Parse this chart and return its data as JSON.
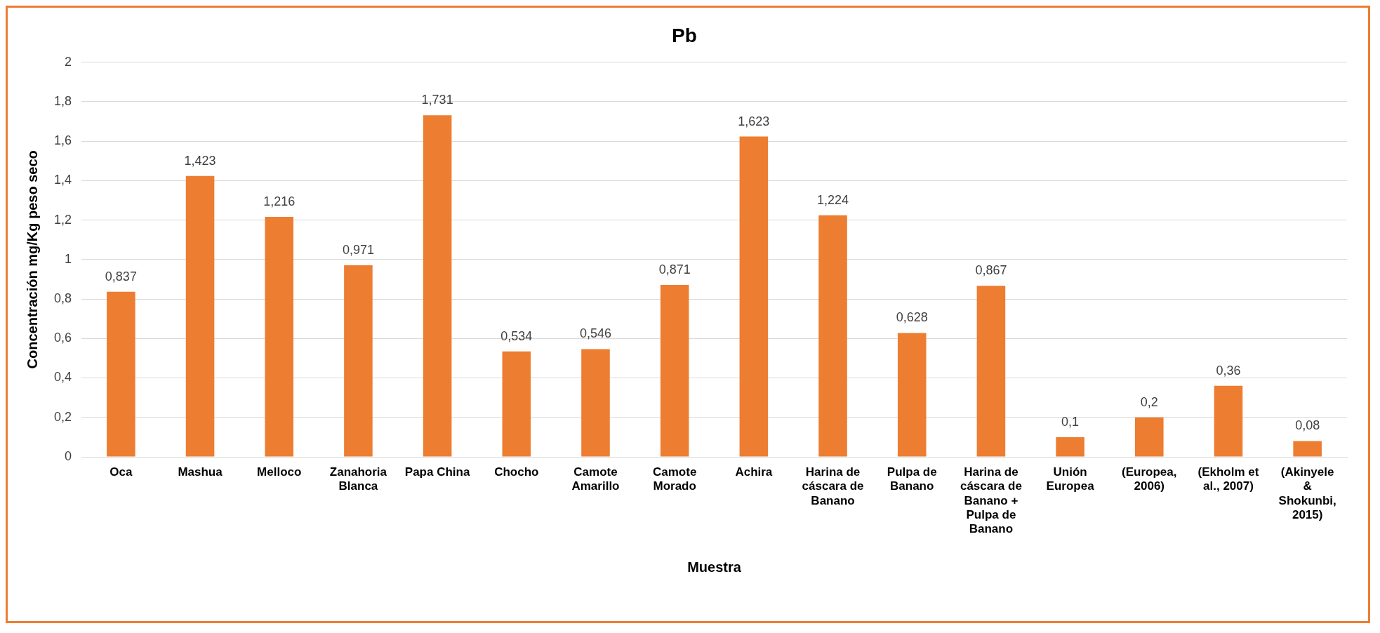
{
  "chart_data": {
    "type": "bar",
    "title": "Pb",
    "xlabel": "Muestra",
    "ylabel": "Concentración mg/Kg peso seco",
    "categories": [
      "Oca",
      "Mashua",
      "Melloco",
      "Zanahoria Blanca",
      "Papa China",
      "Chocho",
      "Camote Amarillo",
      "Camote Morado",
      "Achira",
      "Harina de cáscara de Banano",
      "Pulpa de Banano",
      "Harina de cáscara de Banano + Pulpa de Banano",
      "Unión Europea",
      "(Europea, 2006)",
      "(Ekholm et al., 2007)",
      "(Akinyele & Shokunbi, 2015)"
    ],
    "values": [
      0.837,
      1.423,
      1.216,
      0.971,
      1.731,
      0.534,
      0.546,
      0.871,
      1.623,
      1.224,
      0.628,
      0.867,
      0.1,
      0.2,
      0.36,
      0.08
    ],
    "value_labels": [
      "0,837",
      "1,423",
      "1,216",
      "0,971",
      "1,731",
      "0,534",
      "0,546",
      "0,871",
      "1,623",
      "1,224",
      "0,628",
      "0,867",
      "0,1",
      "0,2",
      "0,36",
      "0,08"
    ],
    "color": "#ed7d31",
    "ylim": [
      0,
      2
    ],
    "yticks": [
      0,
      {
        "value": 0.2,
        "label": "0,2"
      },
      {
        "value": 0.4,
        "label": "0,4"
      },
      {
        "value": 0.6,
        "label": "0,6"
      },
      {
        "value": 0.8,
        "label": "0,8"
      },
      1,
      {
        "value": 1.2,
        "label": "1,2"
      },
      {
        "value": 1.4,
        "label": "1,4"
      },
      {
        "value": 1.6,
        "label": "1,6"
      },
      {
        "value": 1.8,
        "label": "1,8"
      },
      2
    ],
    "grid": "y",
    "legend": false
  }
}
